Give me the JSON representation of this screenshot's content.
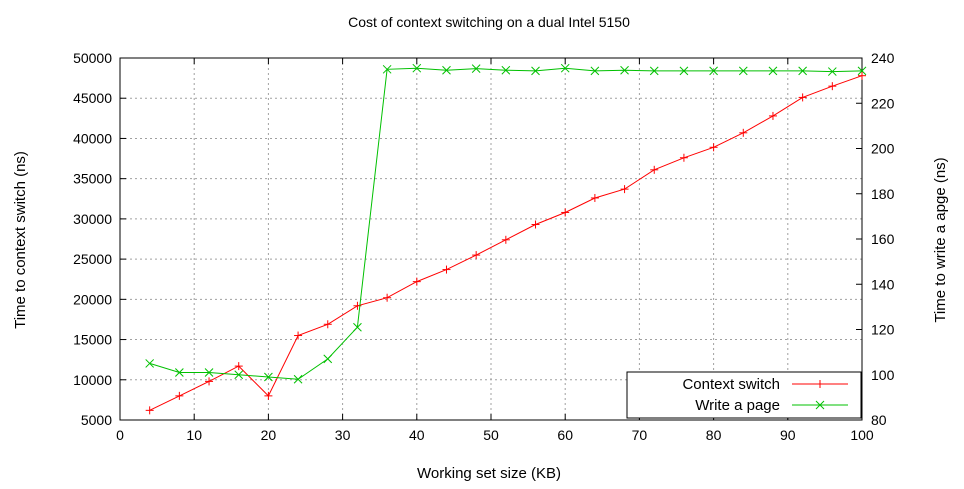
{
  "chart_data": {
    "type": "line",
    "title": "Cost of context switching on a dual Intel 5150",
    "xlabel": "Working set size (KB)",
    "ylabel": "Time to context switch (ns)",
    "y2label": "Time to write a apge (ns)",
    "xlim": [
      0,
      100
    ],
    "ylim": [
      5000,
      50000
    ],
    "y2lim": [
      80,
      240
    ],
    "xticks": [
      0,
      10,
      20,
      30,
      40,
      50,
      60,
      70,
      80,
      90,
      100
    ],
    "yticks": [
      5000,
      10000,
      15000,
      20000,
      25000,
      30000,
      35000,
      40000,
      45000,
      50000
    ],
    "y2ticks": [
      80,
      100,
      120,
      140,
      160,
      180,
      200,
      220,
      240
    ],
    "grid": true,
    "legend_position": "bottom-right",
    "series": [
      {
        "name": "Context switch",
        "axis": "left",
        "color": "#ff0000",
        "marker": "+",
        "x": [
          4,
          8,
          12,
          16,
          20,
          24,
          28,
          32,
          36,
          40,
          44,
          48,
          52,
          56,
          60,
          64,
          68,
          72,
          76,
          80,
          84,
          88,
          92,
          96,
          100
        ],
        "y": [
          6200,
          8000,
          9800,
          11700,
          8000,
          15500,
          16900,
          19200,
          20200,
          22200,
          23700,
          25500,
          27400,
          29300,
          30800,
          32600,
          33700,
          36100,
          37600,
          38900,
          40700,
          42800,
          45100,
          46500,
          47800
        ]
      },
      {
        "name": "Write a page",
        "axis": "right",
        "color": "#00c000",
        "marker": "x",
        "x": [
          4,
          8,
          12,
          16,
          20,
          24,
          28,
          32,
          36,
          40,
          44,
          48,
          52,
          56,
          60,
          64,
          68,
          72,
          76,
          80,
          84,
          88,
          92,
          96,
          100
        ],
        "y": [
          105,
          101,
          101,
          100,
          99,
          98,
          107,
          121,
          235,
          235.5,
          234.6,
          235.3,
          234.6,
          234.3,
          235.5,
          234.3,
          234.6,
          234.3,
          234.3,
          234.3,
          234.3,
          234.3,
          234.3,
          234,
          234.3
        ]
      }
    ]
  }
}
